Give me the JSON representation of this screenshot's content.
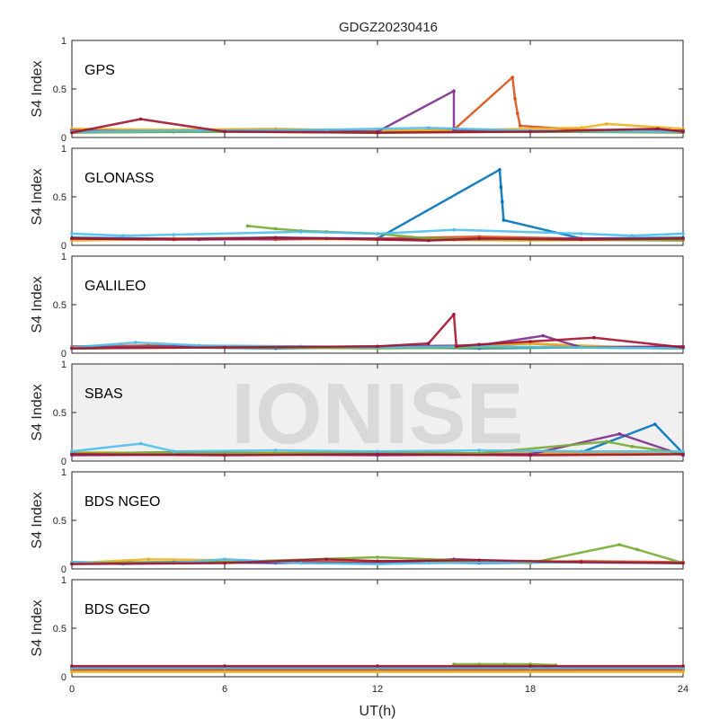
{
  "title": "GDGZ20230416",
  "watermark": "IONISE",
  "chart_data": {
    "type": "scatter",
    "title": "GDGZ20230416",
    "xlabel": "UT(h)",
    "ylabel": "S4 Index",
    "xlim": [
      0,
      24
    ],
    "ylim": [
      0,
      1
    ],
    "x_ticks": [
      0,
      6,
      12,
      18,
      24
    ],
    "y_ticks": [
      0,
      0.5,
      1
    ],
    "x_tick_labels": [
      "0",
      "6",
      "12",
      "18",
      "24"
    ],
    "y_tick_labels": [
      "0",
      "0.5",
      "1"
    ],
    "grid": false,
    "colors": [
      "#0072BD",
      "#D95319",
      "#EDB120",
      "#7E2F8E",
      "#77AC30",
      "#4DBEEE",
      "#A2142F"
    ],
    "panels": [
      {
        "name": "GPS",
        "series": [
          {
            "color": "#0072BD",
            "x": [
              0,
              2,
              4,
              6,
              8,
              10,
              12,
              14,
              16,
              18,
              20,
              22,
              24
            ],
            "y": [
              0.06,
              0.07,
              0.06,
              0.06,
              0.07,
              0.06,
              0.05,
              0.06,
              0.07,
              0.06,
              0.06,
              0.07,
              0.06
            ]
          },
          {
            "color": "#D95319",
            "x": [
              0,
              3,
              6,
              9,
              12,
              15,
              17.3,
              17.4,
              17.5,
              17.6,
              20,
              24
            ],
            "y": [
              0.08,
              0.07,
              0.08,
              0.07,
              0.06,
              0.08,
              0.62,
              0.4,
              0.25,
              0.12,
              0.08,
              0.07
            ]
          },
          {
            "color": "#EDB120",
            "x": [
              0,
              4,
              8,
              12,
              16,
              20,
              21,
              24
            ],
            "y": [
              0.09,
              0.08,
              0.09,
              0.07,
              0.08,
              0.1,
              0.14,
              0.09
            ]
          },
          {
            "color": "#7E2F8E",
            "x": [
              0,
              4,
              8,
              12,
              15,
              15,
              18,
              24
            ],
            "y": [
              0.07,
              0.06,
              0.07,
              0.06,
              0.48,
              0.07,
              0.06,
              0.07
            ]
          },
          {
            "color": "#77AC30",
            "x": [
              0,
              6,
              12,
              18,
              24
            ],
            "y": [
              0.05,
              0.06,
              0.05,
              0.06,
              0.05
            ]
          },
          {
            "color": "#4DBEEE",
            "x": [
              0,
              5,
              10,
              14,
              18,
              24
            ],
            "y": [
              0.06,
              0.07,
              0.08,
              0.1,
              0.07,
              0.06
            ]
          },
          {
            "color": "#A2142F",
            "x": [
              0,
              2.7,
              6,
              12,
              18,
              23,
              24
            ],
            "y": [
              0.05,
              0.19,
              0.06,
              0.05,
              0.06,
              0.09,
              0.06
            ]
          }
        ]
      },
      {
        "name": "GLONASS",
        "series": [
          {
            "color": "#0072BD",
            "x": [
              0,
              4,
              8,
              12,
              16.8,
              16.85,
              16.9,
              16.95,
              20,
              24
            ],
            "y": [
              0.08,
              0.07,
              0.08,
              0.07,
              0.78,
              0.6,
              0.45,
              0.26,
              0.07,
              0.08
            ]
          },
          {
            "color": "#D95319",
            "x": [
              0,
              4,
              8,
              12,
              16,
              20,
              24
            ],
            "y": [
              0.06,
              0.07,
              0.06,
              0.07,
              0.09,
              0.07,
              0.06
            ]
          },
          {
            "color": "#EDB120",
            "x": [
              0,
              3,
              6,
              12,
              18,
              24
            ],
            "y": [
              0.05,
              0.06,
              0.07,
              0.06,
              0.05,
              0.06
            ]
          },
          {
            "color": "#7E2F8E",
            "x": [
              0,
              5,
              10,
              15,
              20,
              24
            ],
            "y": [
              0.07,
              0.06,
              0.07,
              0.06,
              0.07,
              0.06
            ]
          },
          {
            "color": "#77AC30",
            "x": [
              6.9,
              8,
              9,
              10,
              12,
              14,
              18,
              24
            ],
            "y": [
              0.2,
              0.17,
              0.15,
              0.14,
              0.12,
              0.07,
              0.06,
              0.05
            ]
          },
          {
            "color": "#4DBEEE",
            "x": [
              0,
              2,
              4,
              9,
              12,
              15,
              20,
              22,
              24
            ],
            "y": [
              0.12,
              0.1,
              0.11,
              0.14,
              0.12,
              0.16,
              0.12,
              0.1,
              0.12
            ]
          },
          {
            "color": "#A2142F",
            "x": [
              0,
              4,
              8,
              12,
              14,
              16,
              20,
              24
            ],
            "y": [
              0.07,
              0.06,
              0.08,
              0.06,
              0.05,
              0.07,
              0.06,
              0.07
            ]
          }
        ]
      },
      {
        "name": "GALILEO",
        "series": [
          {
            "color": "#0072BD",
            "x": [
              0,
              4,
              8,
              12,
              16,
              20,
              24
            ],
            "y": [
              0.05,
              0.06,
              0.05,
              0.06,
              0.05,
              0.06,
              0.05
            ]
          },
          {
            "color": "#D95319",
            "x": [
              0,
              3,
              6,
              12,
              15,
              18,
              20,
              24
            ],
            "y": [
              0.07,
              0.08,
              0.07,
              0.06,
              0.07,
              0.1,
              0.07,
              0.06
            ]
          },
          {
            "color": "#EDB120",
            "x": [
              0,
              5,
              10,
              14,
              18,
              22,
              24
            ],
            "y": [
              0.06,
              0.07,
              0.06,
              0.07,
              0.1,
              0.06,
              0.05
            ]
          },
          {
            "color": "#7E2F8E",
            "x": [
              0,
              4,
              8,
              12,
              16,
              18.5,
              20,
              24
            ],
            "y": [
              0.06,
              0.07,
              0.06,
              0.07,
              0.08,
              0.18,
              0.06,
              0.07
            ]
          },
          {
            "color": "#77AC30",
            "x": [
              0,
              6,
              12,
              18,
              24
            ],
            "y": [
              0.05,
              0.06,
              0.05,
              0.06,
              0.05
            ]
          },
          {
            "color": "#4DBEEE",
            "x": [
              0,
              2.5,
              5,
              9,
              12,
              16,
              20,
              24
            ],
            "y": [
              0.06,
              0.11,
              0.08,
              0.07,
              0.06,
              0.07,
              0.06,
              0.05
            ]
          },
          {
            "color": "#A2142F",
            "x": [
              0,
              6,
              12,
              14,
              15,
              15.1,
              16,
              18,
              20.5,
              24
            ],
            "y": [
              0.05,
              0.06,
              0.07,
              0.1,
              0.4,
              0.07,
              0.09,
              0.12,
              0.16,
              0.06
            ]
          }
        ]
      },
      {
        "name": "SBAS",
        "series": [
          {
            "color": "#0072BD",
            "x": [
              0,
              4,
              8,
              12,
              16,
              20,
              22.9,
              24
            ],
            "y": [
              0.08,
              0.09,
              0.08,
              0.09,
              0.08,
              0.09,
              0.38,
              0.08
            ]
          },
          {
            "color": "#D95319",
            "x": [
              0,
              6,
              12,
              18,
              24
            ],
            "y": [
              0.07,
              0.08,
              0.07,
              0.08,
              0.07
            ]
          },
          {
            "color": "#EDB120",
            "x": [
              0,
              5,
              10,
              15,
              20,
              24
            ],
            "y": [
              0.09,
              0.08,
              0.09,
              0.08,
              0.09,
              0.08
            ]
          },
          {
            "color": "#7E2F8E",
            "x": [
              0,
              6,
              12,
              18,
              21.5,
              24
            ],
            "y": [
              0.06,
              0.07,
              0.06,
              0.07,
              0.28,
              0.06
            ]
          },
          {
            "color": "#77AC30",
            "x": [
              0,
              4,
              8,
              12,
              16,
              21,
              22,
              24
            ],
            "y": [
              0.08,
              0.09,
              0.08,
              0.09,
              0.08,
              0.2,
              0.15,
              0.08
            ]
          },
          {
            "color": "#4DBEEE",
            "x": [
              0,
              2.7,
              4,
              8,
              12,
              16,
              20,
              24
            ],
            "y": [
              0.1,
              0.18,
              0.1,
              0.11,
              0.1,
              0.11,
              0.1,
              0.1
            ]
          },
          {
            "color": "#A2142F",
            "x": [
              0,
              6,
              12,
              18,
              24
            ],
            "y": [
              0.07,
              0.06,
              0.07,
              0.06,
              0.07
            ]
          }
        ]
      },
      {
        "name": "BDS NGEO",
        "series": [
          {
            "color": "#0072BD",
            "x": [
              0,
              4,
              8,
              12,
              16,
              20,
              24
            ],
            "y": [
              0.06,
              0.07,
              0.06,
              0.07,
              0.06,
              0.07,
              0.06
            ]
          },
          {
            "color": "#D95319",
            "x": [
              0,
              4,
              8,
              12,
              16,
              20,
              24
            ],
            "y": [
              0.07,
              0.06,
              0.07,
              0.08,
              0.07,
              0.08,
              0.07
            ]
          },
          {
            "color": "#EDB120",
            "x": [
              0,
              3,
              6,
              9,
              12,
              18,
              24
            ],
            "y": [
              0.06,
              0.1,
              0.09,
              0.06,
              0.07,
              0.08,
              0.06
            ]
          },
          {
            "color": "#7E2F8E",
            "x": [
              0,
              6,
              12,
              15,
              18,
              24
            ],
            "y": [
              0.06,
              0.07,
              0.06,
              0.1,
              0.07,
              0.06
            ]
          },
          {
            "color": "#77AC30",
            "x": [
              0,
              6,
              12,
              18,
              21.5,
              22.2,
              24
            ],
            "y": [
              0.06,
              0.07,
              0.12,
              0.06,
              0.25,
              0.2,
              0.06
            ]
          },
          {
            "color": "#4DBEEE",
            "x": [
              0,
              2,
              4,
              6,
              9,
              12,
              14,
              18,
              24
            ],
            "y": [
              0.07,
              0.05,
              0.06,
              0.1,
              0.06,
              0.05,
              0.06,
              0.07,
              0.06
            ]
          },
          {
            "color": "#A2142F",
            "x": [
              0,
              6,
              10,
              12,
              16,
              20,
              24
            ],
            "y": [
              0.05,
              0.06,
              0.1,
              0.08,
              0.09,
              0.07,
              0.06
            ]
          }
        ]
      },
      {
        "name": "BDS GEO",
        "series": [
          {
            "color": "#0072BD",
            "x": [
              0,
              6,
              12,
              18,
              24
            ],
            "y": [
              0.08,
              0.08,
              0.08,
              0.08,
              0.08
            ]
          },
          {
            "color": "#D95319",
            "x": [
              0,
              6,
              12,
              18,
              24
            ],
            "y": [
              0.07,
              0.07,
              0.07,
              0.07,
              0.07
            ]
          },
          {
            "color": "#EDB120",
            "x": [
              0,
              6,
              12,
              18,
              24
            ],
            "y": [
              0.05,
              0.05,
              0.05,
              0.05,
              0.05
            ]
          },
          {
            "color": "#7E2F8E",
            "x": [
              0,
              6,
              12,
              18,
              24
            ],
            "y": [
              0.1,
              0.1,
              0.1,
              0.1,
              0.1
            ]
          },
          {
            "color": "#77AC30",
            "x": [
              15,
              16,
              17,
              18,
              19
            ],
            "y": [
              0.13,
              0.13,
              0.13,
              0.13,
              0.12
            ]
          },
          {
            "color": "#4DBEEE",
            "x": [
              0,
              6,
              12,
              18,
              24
            ],
            "y": [
              0.09,
              0.09,
              0.09,
              0.09,
              0.09
            ]
          },
          {
            "color": "#A2142F",
            "x": [
              0,
              6,
              12,
              18,
              24
            ],
            "y": [
              0.11,
              0.11,
              0.11,
              0.11,
              0.11
            ]
          }
        ]
      }
    ]
  }
}
